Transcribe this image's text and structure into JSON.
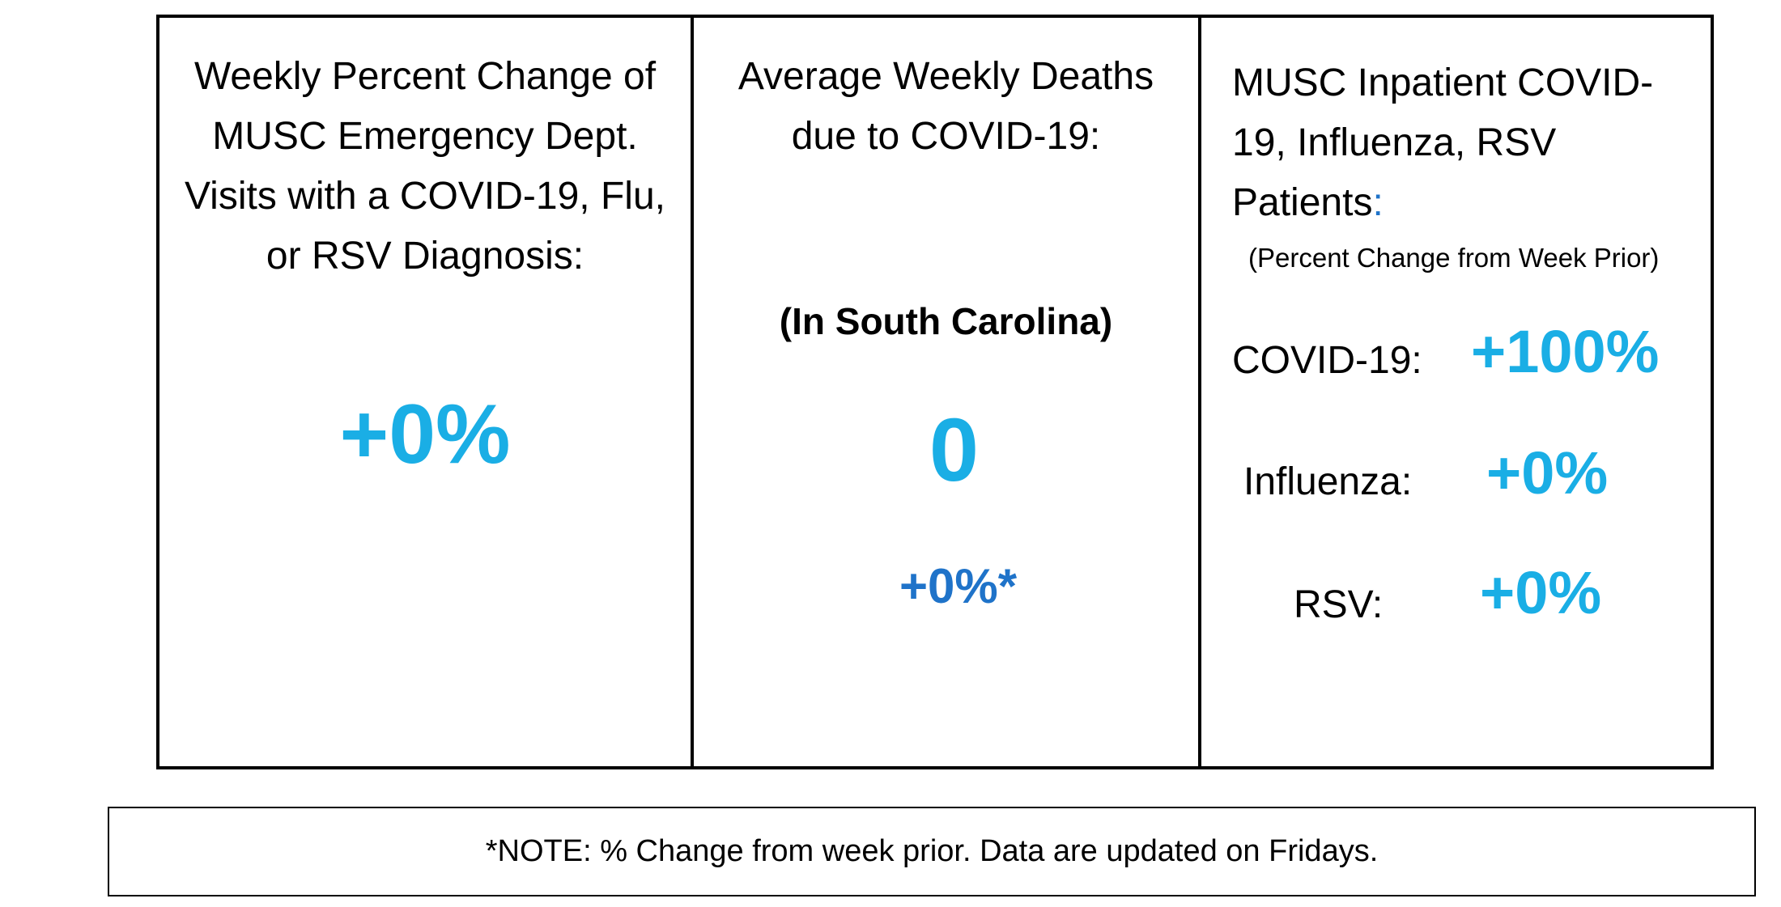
{
  "panels": {
    "ed_visits": {
      "title": "Weekly Percent Change of MUSC Emergency Dept. Visits with a COVID-19, Flu, or RSV Diagnosis:",
      "value": "+0%"
    },
    "deaths": {
      "title": "Average Weekly Deaths due to COVID-19:",
      "region": "(In South Carolina)",
      "value": "0",
      "change": "+0%*"
    },
    "inpatient": {
      "title": "MUSC Inpatient COVID-19, Influenza, RSV Patients",
      "title_colon": ":",
      "subtitle": "(Percent Change from Week Prior)",
      "metrics": [
        {
          "label": "COVID-19:",
          "value": "+100%"
        },
        {
          "label": "Influenza:",
          "value": "+0%"
        },
        {
          "label": "RSV:",
          "value": "+0%"
        }
      ]
    }
  },
  "footnote": "*NOTE: % Change from week prior. Data are updated on Fridays.",
  "colors": {
    "accent_light_blue": "#1aaee5",
    "accent_dark_blue": "#1f73c9",
    "border": "#000000"
  }
}
